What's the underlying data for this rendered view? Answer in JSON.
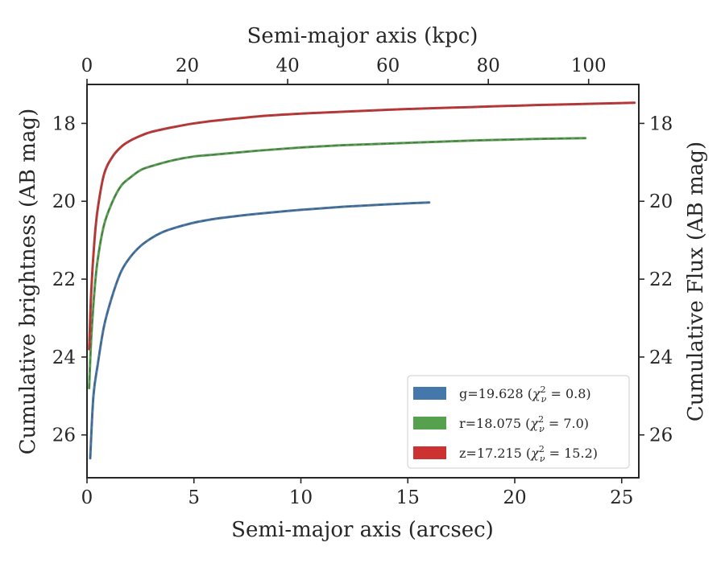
{
  "chart_data": {
    "type": "line",
    "title": "",
    "xlabel": "Semi-major axis (arcsec)",
    "top_xlabel": "Semi-major axis (kpc)",
    "ylabel": "Cumulative brightness (AB mag)",
    "right_ylabel": "Cumulative Flux (AB mag)",
    "xlim": [
      0,
      25.8
    ],
    "ylim": [
      27.1,
      17.0
    ],
    "top_xlim": [
      0,
      110
    ],
    "y_inverted": true,
    "grid": false,
    "legend_position": "lower-right",
    "x_ticks": [
      "0",
      "5",
      "10",
      "15",
      "20",
      "25"
    ],
    "top_x_ticks": [
      "0",
      "20",
      "40",
      "60",
      "80",
      "100"
    ],
    "y_ticks": [
      "18",
      "20",
      "22",
      "24",
      "26"
    ],
    "right_y_ticks": [
      "18",
      "20",
      "22",
      "24",
      "26"
    ],
    "series": [
      {
        "name": "g=19.628 (χ²_ν = 0.8)",
        "legend_main": "g=19.628 (",
        "legend_chi_sub": "ν",
        "legend_chi_value": " = 0.8)",
        "color": "#4477aa",
        "x": [
          0.15,
          0.3,
          0.5,
          0.8,
          1.2,
          1.6,
          2.0,
          2.5,
          3.0,
          3.5,
          4.0,
          5.0,
          6.0,
          7.0,
          8.0,
          10.0,
          12.0,
          14.0,
          16.0
        ],
        "y": [
          26.6,
          25.0,
          24.2,
          23.2,
          22.4,
          21.8,
          21.45,
          21.15,
          20.95,
          20.8,
          20.7,
          20.55,
          20.45,
          20.38,
          20.32,
          20.22,
          20.14,
          20.08,
          20.03
        ]
      },
      {
        "name": "r=18.075 (χ²_ν = 7.0)",
        "legend_main": "r=18.075 (",
        "legend_chi_sub": "ν",
        "legend_chi_value": " = 7.0)",
        "color": "#55a14e",
        "x": [
          0.1,
          0.2,
          0.35,
          0.5,
          0.8,
          1.2,
          1.6,
          2.0,
          2.5,
          3.0,
          4.0,
          5.0,
          6.0,
          8.0,
          10.0,
          12.0,
          15.0,
          18.0,
          21.0,
          23.3
        ],
        "y": [
          24.8,
          23.5,
          22.3,
          21.5,
          20.6,
          20.0,
          19.6,
          19.4,
          19.2,
          19.1,
          18.95,
          18.85,
          18.8,
          18.7,
          18.62,
          18.56,
          18.5,
          18.44,
          18.4,
          18.38
        ]
      },
      {
        "name": "z=17.215 (χ²_ν = 15.2)",
        "legend_main": "z=17.215 (",
        "legend_chi_sub": "ν",
        "legend_chi_value": " = 15.2)",
        "color": "#cc3232",
        "x": [
          0.1,
          0.2,
          0.35,
          0.5,
          0.8,
          1.2,
          1.6,
          2.0,
          2.5,
          3.0,
          4.0,
          5.0,
          6.0,
          8.0,
          10.0,
          12.0,
          15.0,
          18.0,
          21.0,
          24.0,
          25.6
        ],
        "y": [
          23.8,
          22.3,
          21.0,
          20.2,
          19.3,
          18.85,
          18.6,
          18.45,
          18.32,
          18.22,
          18.1,
          18.0,
          17.93,
          17.82,
          17.75,
          17.7,
          17.63,
          17.58,
          17.53,
          17.49,
          17.47
        ]
      }
    ]
  }
}
